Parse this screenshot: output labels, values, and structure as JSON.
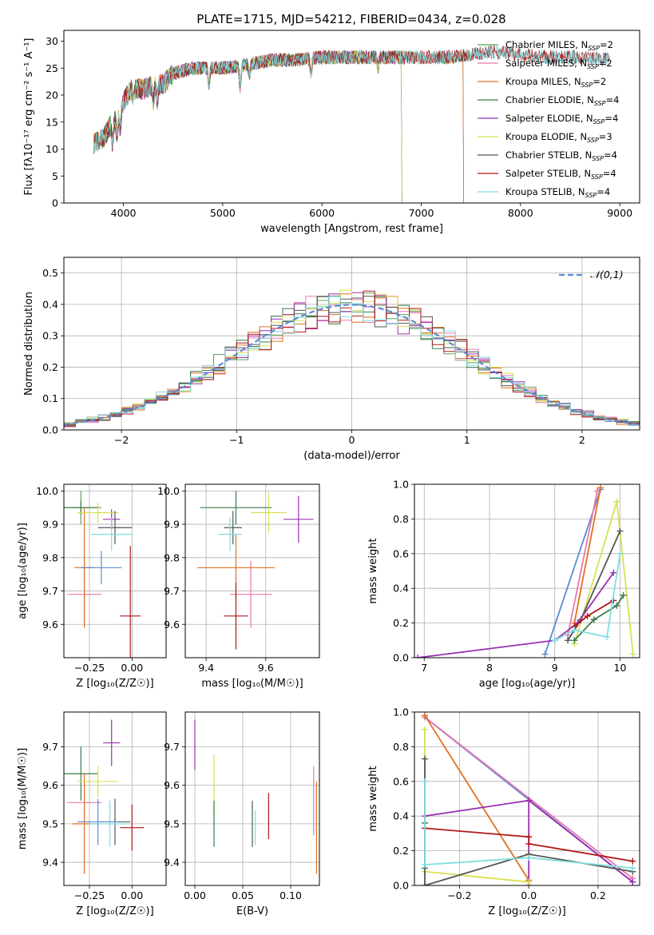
{
  "title": "PLATE=1715, MJD=54212, FIBERID=0434, z=0.028",
  "chart_data": [
    {
      "id": "spectrum",
      "type": "line",
      "xlabel": "wavelength [Angstrom, rest frame]",
      "ylabel": "Flux [fλ10⁻¹⁷ erg cm⁻² s⁻¹ A⁻¹]",
      "xlim": [
        3400,
        9200
      ],
      "ylim": [
        0,
        32
      ],
      "xticks": [
        "4000",
        "5000",
        "6000",
        "7000",
        "8000",
        "9000"
      ],
      "yticks": [
        "0",
        "5",
        "10",
        "15",
        "20",
        "25",
        "30"
      ],
      "legend_position": "right",
      "series": [
        {
          "name": "Chabrier MILES, N_SSP=2",
          "color": "#5aa05a",
          "x_end": 7420
        },
        {
          "name": "Salpeter MILES, N_SSP=2",
          "color": "#e878b0",
          "x_end": 7420
        },
        {
          "name": "Kroupa MILES, N_SSP=2",
          "color": "#e07020",
          "x_end": 7420
        },
        {
          "name": "Chabrier ELODIE, N_SSP=4",
          "color": "#3a7a4a",
          "x_end": 6800
        },
        {
          "name": "Salpeter ELODIE, N_SSP=4",
          "color": "#9a30b0",
          "x_end": 6800
        },
        {
          "name": "Kroupa ELODIE, N_SSP=3",
          "color": "#d8e050",
          "x_end": 6800
        },
        {
          "name": "Chabrier STELIB, N_SSP=4",
          "color": "#555555",
          "x_end": 8900
        },
        {
          "name": "Salpeter STELIB, N_SSP=4",
          "color": "#b01818",
          "x_end": 8900
        },
        {
          "name": "Kroupa STELIB, N_SSP=4",
          "color": "#80dde0",
          "x_end": 8900
        }
      ],
      "shape": [
        [
          3700,
          11
        ],
        [
          3800,
          12
        ],
        [
          3900,
          15.5
        ],
        [
          3950,
          16
        ],
        [
          4000,
          19
        ],
        [
          4100,
          21.5
        ],
        [
          4200,
          21
        ],
        [
          4300,
          22
        ],
        [
          4400,
          22
        ],
        [
          4500,
          24
        ],
        [
          4700,
          25
        ],
        [
          5000,
          25
        ],
        [
          5200,
          25.5
        ],
        [
          5500,
          26.5
        ],
        [
          5700,
          26.5
        ],
        [
          6000,
          27
        ],
        [
          6300,
          27
        ],
        [
          6500,
          27
        ],
        [
          6800,
          27
        ],
        [
          7000,
          27
        ],
        [
          7300,
          27
        ],
        [
          7500,
          27.5
        ],
        [
          7700,
          28
        ],
        [
          8000,
          27.5
        ],
        [
          8300,
          27
        ],
        [
          8600,
          27
        ],
        [
          8900,
          26.5
        ]
      ],
      "dips": [
        {
          "x": 3890,
          "depth": 4
        },
        {
          "x": 3934,
          "depth": 3
        },
        {
          "x": 3969,
          "depth": 3
        },
        {
          "x": 4102,
          "depth": 2
        },
        {
          "x": 4300,
          "depth": 3
        },
        {
          "x": 4340,
          "depth": 3
        },
        {
          "x": 4861,
          "depth": 3
        },
        {
          "x": 5175,
          "depth": 4
        },
        {
          "x": 5270,
          "depth": 2
        },
        {
          "x": 5890,
          "depth": 3
        },
        {
          "x": 6563,
          "depth": 2
        }
      ]
    },
    {
      "id": "residual-histogram",
      "type": "histogram",
      "xlabel": "(data-model)/error",
      "ylabel": "Normed distribution",
      "xlim": [
        -2.5,
        2.5
      ],
      "ylim": [
        0,
        0.55
      ],
      "xticks": [
        "-2",
        "-1",
        "0",
        "1",
        "2"
      ],
      "yticks": [
        "0.0",
        "0.1",
        "0.2",
        "0.3",
        "0.4",
        "0.5"
      ],
      "grid": true,
      "legend": "𝒩(0,1)",
      "legend_position": "top-right",
      "reference_color": "#5b8bd4",
      "bin_width": 0.1
    },
    {
      "id": "age-vs-z",
      "type": "errorbar",
      "xlabel": "Z [log₁₀(Z/Z☉)]",
      "ylabel": "age  [log₁₀(age/yr)]",
      "xlim": [
        -0.4,
        0.2
      ],
      "ylim": [
        9.5,
        10.02
      ],
      "xticks": [
        "-0.25",
        "0.00"
      ],
      "yticks": [
        "9.6",
        "9.7",
        "9.8",
        "9.9",
        "10.0"
      ],
      "grid": true,
      "points": [
        {
          "x": -0.3,
          "y": 9.95,
          "xerr": 0.12,
          "yerr": 0.05,
          "color": "#5aa05a"
        },
        {
          "x": -0.28,
          "y": 9.69,
          "xerr": 0.1,
          "yerr": 0.1,
          "color": "#e878b0"
        },
        {
          "x": -0.28,
          "y": 9.77,
          "xerr": 0.06,
          "yerr": 0.18,
          "color": "#e07020"
        },
        {
          "x": -0.3,
          "y": 9.95,
          "xerr": 0.1,
          "yerr": 0.02,
          "color": "#3a7a4a"
        },
        {
          "x": -0.12,
          "y": 9.915,
          "xerr": 0.05,
          "yerr": 0.03,
          "color": "#9a30b0"
        },
        {
          "x": -0.2,
          "y": 9.935,
          "xerr": 0.12,
          "yerr": 0.03,
          "color": "#d8e050"
        },
        {
          "x": -0.1,
          "y": 9.89,
          "xerr": 0.1,
          "yerr": 0.05,
          "color": "#555555"
        },
        {
          "x": -0.01,
          "y": 9.625,
          "xerr": 0.06,
          "yerr": 0.21,
          "color": "#b01818"
        },
        {
          "x": -0.12,
          "y": 9.87,
          "xerr": 0.12,
          "yerr": 0.05,
          "color": "#80dde0"
        },
        {
          "x": -0.18,
          "y": 9.77,
          "xerr": 0.12,
          "yerr": 0.05,
          "color": "#5b8bd4"
        }
      ]
    },
    {
      "id": "age-vs-mass",
      "type": "errorbar",
      "xlabel": "mass [log₁₀(M/M☉)]",
      "ylabel": "",
      "xlim": [
        9.33,
        9.78
      ],
      "ylim": [
        9.5,
        10.02
      ],
      "xticks": [
        "9.4",
        "9.6"
      ],
      "yticks": [
        "9.6",
        "9.7",
        "9.8",
        "9.9",
        "10.0"
      ],
      "grid": true,
      "points": [
        {
          "x": 9.5,
          "y": 9.95,
          "xerr": 0.12,
          "yerr": 0.05,
          "color": "#3a7a4a"
        },
        {
          "x": 9.55,
          "y": 9.69,
          "xerr": 0.07,
          "yerr": 0.1,
          "color": "#e878b0"
        },
        {
          "x": 9.5,
          "y": 9.77,
          "xerr": 0.13,
          "yerr": 0.1,
          "color": "#e07020"
        },
        {
          "x": 9.61,
          "y": 9.935,
          "xerr": 0.06,
          "yerr": 0.06,
          "color": "#d8e050"
        },
        {
          "x": 9.71,
          "y": 9.915,
          "xerr": 0.05,
          "yerr": 0.07,
          "color": "#9a30b0"
        },
        {
          "x": 9.49,
          "y": 9.89,
          "xerr": 0.03,
          "yerr": 0.05,
          "color": "#555555"
        },
        {
          "x": 9.5,
          "y": 9.625,
          "xerr": 0.04,
          "yerr": 0.1,
          "color": "#b01818"
        },
        {
          "x": 9.48,
          "y": 9.87,
          "xerr": 0.04,
          "yerr": 0.05,
          "color": "#80dde0"
        }
      ]
    },
    {
      "id": "mass-weight-vs-age",
      "type": "line",
      "xlabel": "age  [log₁₀(age/yr)]",
      "ylabel": "mass weight",
      "xlim": [
        6.85,
        10.3
      ],
      "ylim": [
        0,
        1
      ],
      "xticks": [
        "7",
        "8",
        "9",
        "10"
      ],
      "yticks": [
        "0.0",
        "0.2",
        "0.4",
        "0.6",
        "0.8",
        "1.0"
      ],
      "grid": true,
      "series": [
        {
          "color": "#5b8bd4",
          "points": [
            [
              8.85,
              0.02
            ],
            [
              9.7,
              0.97
            ]
          ]
        },
        {
          "color": "#e878b0",
          "points": [
            [
              9.2,
              0.13
            ],
            [
              9.65,
              0.96
            ]
          ]
        },
        {
          "color": "#e07020",
          "points": [
            [
              9.3,
              0.2
            ],
            [
              9.7,
              0.98
            ]
          ]
        },
        {
          "color": "#d8e050",
          "points": [
            [
              9.3,
              0.08
            ],
            [
              9.95,
              0.9
            ],
            [
              10.2,
              0.02
            ]
          ]
        },
        {
          "color": "#555555",
          "points": [
            [
              9.2,
              0.1
            ],
            [
              9.4,
              0.22
            ],
            [
              10.0,
              0.73
            ]
          ]
        },
        {
          "color": "#3a7a4a",
          "points": [
            [
              9.3,
              0.1
            ],
            [
              9.6,
              0.22
            ],
            [
              9.95,
              0.3
            ],
            [
              10.05,
              0.36
            ]
          ]
        },
        {
          "color": "#9a30b0",
          "points": [
            [
              6.9,
              0.0
            ],
            [
              9.0,
              0.1
            ],
            [
              9.35,
              0.2
            ],
            [
              9.9,
              0.49
            ]
          ]
        },
        {
          "color": "#b01818",
          "points": [
            [
              9.3,
              0.18
            ],
            [
              9.5,
              0.24
            ],
            [
              9.9,
              0.33
            ]
          ]
        },
        {
          "color": "#80dde0",
          "points": [
            [
              9.0,
              0.1
            ],
            [
              9.3,
              0.16
            ],
            [
              9.8,
              0.12
            ],
            [
              10.0,
              0.6
            ]
          ]
        }
      ]
    },
    {
      "id": "mass-vs-z",
      "type": "errorbar",
      "xlabel": "Z [log₁₀(Z/Z☉)]",
      "ylabel": "mass [log₁₀(M/M☉)]",
      "xlim": [
        -0.4,
        0.2
      ],
      "ylim": [
        9.34,
        9.79
      ],
      "xticks": [
        "-0.25",
        "0.00"
      ],
      "yticks": [
        "9.4",
        "9.5",
        "9.6",
        "9.7"
      ],
      "grid": true,
      "points": [
        {
          "x": -0.3,
          "y": 9.63,
          "xerr": 0.1,
          "yerr": 0.07,
          "color": "#3a7a4a"
        },
        {
          "x": -0.28,
          "y": 9.555,
          "xerr": 0.1,
          "yerr": 0.05,
          "color": "#e878b0"
        },
        {
          "x": -0.28,
          "y": 9.5,
          "xerr": 0.07,
          "yerr": 0.13,
          "color": "#e07020"
        },
        {
          "x": -0.12,
          "y": 9.71,
          "xerr": 0.05,
          "yerr": 0.06,
          "color": "#9a30b0"
        },
        {
          "x": -0.2,
          "y": 9.61,
          "xerr": 0.12,
          "yerr": 0.04,
          "color": "#d8e050"
        },
        {
          "x": -0.1,
          "y": 9.505,
          "xerr": 0.09,
          "yerr": 0.06,
          "color": "#555555"
        },
        {
          "x": 0.0,
          "y": 9.49,
          "xerr": 0.07,
          "yerr": 0.06,
          "color": "#b01818"
        },
        {
          "x": -0.13,
          "y": 9.5,
          "xerr": 0.12,
          "yerr": 0.06,
          "color": "#80dde0"
        },
        {
          "x": -0.2,
          "y": 9.505,
          "xerr": 0.12,
          "yerr": 0.06,
          "color": "#5b8bd4"
        }
      ]
    },
    {
      "id": "mass-vs-ebv",
      "type": "errorbar",
      "xlabel": "E(B-V)",
      "ylabel": "",
      "xlim": [
        -0.01,
        0.13
      ],
      "ylim": [
        9.34,
        9.79
      ],
      "xticks": [
        "0.00",
        "0.05",
        "0.10"
      ],
      "yticks": [
        "9.4",
        "9.5",
        "9.6",
        "9.7"
      ],
      "grid": true,
      "points": [
        {
          "x": 0.0,
          "y": 9.705,
          "xerr": 0,
          "yerr": 0.065,
          "color": "#9a30b0"
        },
        {
          "x": 0.02,
          "y": 9.6,
          "xerr": 0,
          "yerr": 0.08,
          "color": "#d8e050"
        },
        {
          "x": 0.02,
          "y": 9.5,
          "xerr": 0,
          "yerr": 0.06,
          "color": "#3a7a4a"
        },
        {
          "x": 0.06,
          "y": 9.5,
          "xerr": 0,
          "yerr": 0.06,
          "color": "#555555"
        },
        {
          "x": 0.063,
          "y": 9.49,
          "xerr": 0,
          "yerr": 0.045,
          "color": "#80dde0"
        },
        {
          "x": 0.077,
          "y": 9.52,
          "xerr": 0,
          "yerr": 0.06,
          "color": "#b01818"
        },
        {
          "x": 0.124,
          "y": 9.56,
          "xerr": 0,
          "yerr": 0.09,
          "color": "#e878b0"
        },
        {
          "x": 0.127,
          "y": 9.49,
          "xerr": 0,
          "yerr": 0.12,
          "color": "#e07020"
        }
      ]
    },
    {
      "id": "mass-weight-vs-z",
      "type": "line",
      "xlabel": "Z [log₁₀(Z/Z☉)]",
      "ylabel": "mass weight",
      "xlim": [
        -0.33,
        0.32
      ],
      "ylim": [
        0,
        1
      ],
      "xticks": [
        "-0.2",
        "0.0",
        "0.2"
      ],
      "yticks": [
        "0.0",
        "0.2",
        "0.4",
        "0.6",
        "0.8",
        "1.0"
      ],
      "grid": true,
      "series": [
        {
          "color": "#5b8bd4",
          "points": [
            [
              -0.3,
              0.97
            ],
            [
              0.3,
              0.02
            ]
          ]
        },
        {
          "color": "#e878b0",
          "points": [
            [
              -0.3,
              0.97
            ],
            [
              0.3,
              0.04
            ]
          ]
        },
        {
          "color": "#e07020",
          "points": [
            [
              -0.3,
              0.98
            ],
            [
              0.0,
              0.03
            ]
          ]
        },
        {
          "color": "#9a30b0",
          "points": [
            [
              -0.3,
              0.4
            ],
            [
              0.0,
              0.49
            ],
            [
              0.0,
              0.0
            ],
            [
              0.0,
              0.49
            ],
            [
              0.3,
              0.02
            ]
          ]
        },
        {
          "color": "#d8e050",
          "points": [
            [
              -0.3,
              0.9
            ],
            [
              -0.3,
              0.08
            ],
            [
              0.0,
              0.02
            ]
          ]
        },
        {
          "color": "#555555",
          "points": [
            [
              -0.3,
              0.73
            ],
            [
              -0.3,
              0.0
            ],
            [
              0.0,
              0.18
            ],
            [
              0.3,
              0.08
            ]
          ]
        },
        {
          "color": "#3a7a4a",
          "points": [
            [
              -0.3,
              0.36
            ],
            [
              -0.3,
              0.1
            ]
          ]
        },
        {
          "color": "#b01818",
          "points": [
            [
              -0.3,
              0.33
            ],
            [
              0.0,
              0.28
            ],
            [
              0.0,
              0.24
            ],
            [
              0.3,
              0.14
            ]
          ]
        },
        {
          "color": "#80dde0",
          "points": [
            [
              -0.3,
              0.6
            ],
            [
              -0.3,
              0.12
            ],
            [
              0.0,
              0.16
            ],
            [
              0.3,
              0.1
            ]
          ]
        }
      ]
    }
  ]
}
